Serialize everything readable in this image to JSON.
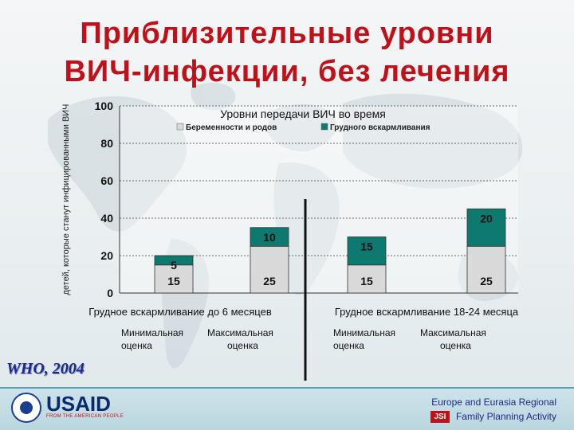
{
  "slide": {
    "title_line1": "Приблизительные уровни",
    "title_line2": "ВИЧ-инфекции, без лечения",
    "source": "WHO, 2004"
  },
  "chart_data": {
    "type": "bar",
    "stacked": true,
    "title": "Уровни передачи ВИЧ во время",
    "ylabel": "детей, которые станут инфицированными ВИЧ",
    "ylim": [
      0,
      100
    ],
    "yticks": [
      0,
      20,
      40,
      60,
      80,
      100
    ],
    "grid": true,
    "legend_position": "top",
    "categories": [
      "Минимальная оценка",
      "Максимальная оценка",
      "Минимальная оценка",
      "Максимальная оценка"
    ],
    "category_lines": [
      [
        "Минимальная",
        "оценка"
      ],
      [
        "Максимальная",
        "оценка"
      ],
      [
        "Минимальная",
        "оценка"
      ],
      [
        "Максимальная",
        "оценка"
      ]
    ],
    "groups": [
      {
        "label": "Грудное вскармливание до 6 месяцев",
        "categories": [
          0,
          1
        ]
      },
      {
        "label": "Грудное вскармливание 18-24 месяца",
        "categories": [
          2,
          3
        ]
      }
    ],
    "series": [
      {
        "name": "Беременности и родов",
        "values": [
          15,
          25,
          15,
          25
        ],
        "color": "#d9d9d9"
      },
      {
        "name": "Грудного вскармливания",
        "values": [
          5,
          10,
          15,
          20
        ],
        "color": "#0e7a6f"
      }
    ]
  },
  "footer": {
    "usaid": "USAID",
    "usaid_tagline": "FROM THE AMERICAN PEOPLE",
    "org_line1": "Europe and Eurasia Regional",
    "org_line2": "Family Planning Activity",
    "jsi": "JSI"
  }
}
